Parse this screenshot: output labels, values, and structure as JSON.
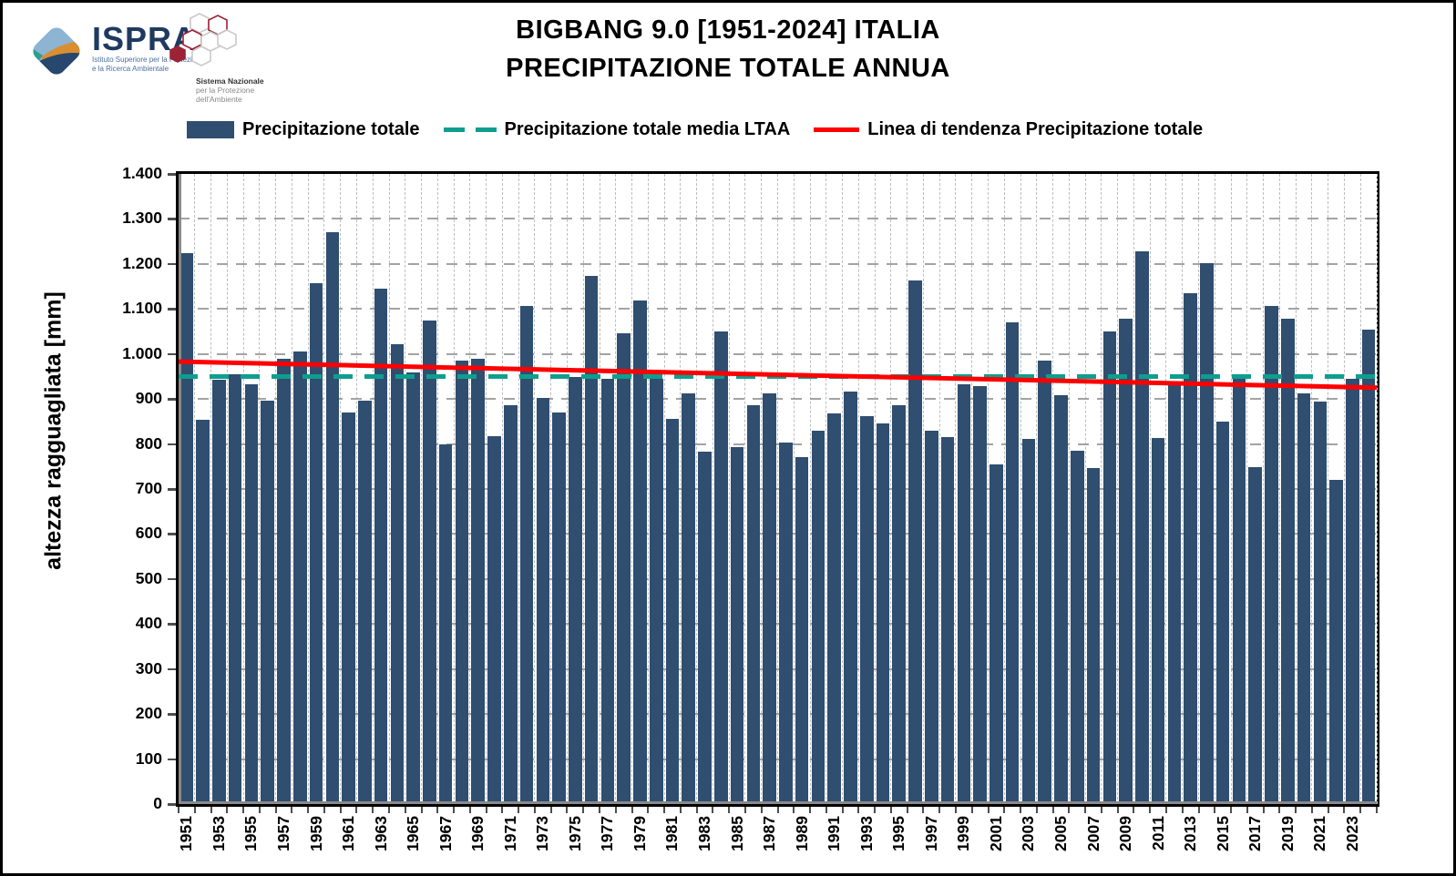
{
  "header": {
    "title_line1": "BIGBANG 9.0 [1951-2024] ITALIA",
    "title_line2": "PRECIPITAZIONE TOTALE ANNUA"
  },
  "logos": {
    "ispra": {
      "name": "ISPRA",
      "sub1": "Istituto Superiore per la Protezione",
      "sub2": "e la Ricerca Ambientale"
    },
    "snpa": {
      "line1": "Sistema Nazionale",
      "line2": "per la Protezione",
      "line3": "dell'Ambiente"
    }
  },
  "legend": [
    {
      "label": "Precipitazione totale",
      "type": "bar",
      "color": "#2F4E70"
    },
    {
      "label": "Precipitazione totale media LTAA",
      "type": "dash",
      "color": "#0F9E8E"
    },
    {
      "label": "Linea di tendenza Precipitazione totale",
      "type": "line",
      "color": "#FF0000"
    }
  ],
  "chart_data": {
    "type": "bar",
    "title": "PRECIPITAZIONE TOTALE ANNUA",
    "xlabel": "",
    "ylabel": "altezza ragguagliata [mm]",
    "ylim": [
      0,
      1400
    ],
    "ytick_step": 100,
    "grid": true,
    "bar_color": "#2F4E70",
    "mean_color": "#0F9E8E",
    "trend_color": "#FF0000",
    "categories": [
      1951,
      1952,
      1953,
      1954,
      1955,
      1956,
      1957,
      1958,
      1959,
      1960,
      1961,
      1962,
      1963,
      1964,
      1965,
      1966,
      1967,
      1968,
      1969,
      1970,
      1971,
      1972,
      1973,
      1974,
      1975,
      1976,
      1977,
      1978,
      1979,
      1980,
      1981,
      1982,
      1983,
      1984,
      1985,
      1986,
      1987,
      1988,
      1989,
      1990,
      1991,
      1992,
      1993,
      1994,
      1995,
      1996,
      1997,
      1998,
      1999,
      2000,
      2001,
      2002,
      2003,
      2004,
      2005,
      2006,
      2007,
      2008,
      2009,
      2010,
      2011,
      2012,
      2013,
      2014,
      2015,
      2016,
      2017,
      2018,
      2019,
      2020,
      2021,
      2022,
      2023,
      2024
    ],
    "values": [
      1224,
      854,
      942,
      955,
      933,
      896,
      990,
      1005,
      1158,
      1270,
      869,
      897,
      1145,
      1022,
      958,
      1074,
      799,
      985,
      989,
      817,
      887,
      1106,
      902,
      870,
      949,
      1174,
      944,
      1045,
      1119,
      944,
      856,
      913,
      783,
      1050,
      794,
      886,
      913,
      803,
      770,
      830,
      867,
      917,
      862,
      845,
      887,
      1163,
      830,
      815,
      933,
      928,
      755,
      1071,
      811,
      985,
      909,
      784,
      747,
      1049,
      1079,
      1229,
      814,
      935,
      1134,
      1201,
      850,
      953,
      748,
      1107,
      1078,
      912,
      895,
      720,
      945,
      1055
    ],
    "series": [
      {
        "name": "Precipitazione totale media LTAA",
        "style": "dashed",
        "value": 950
      },
      {
        "name": "Linea di tendenza Precipitazione totale",
        "style": "solid",
        "start": 983,
        "end": 925
      }
    ],
    "legend_position": "top"
  }
}
